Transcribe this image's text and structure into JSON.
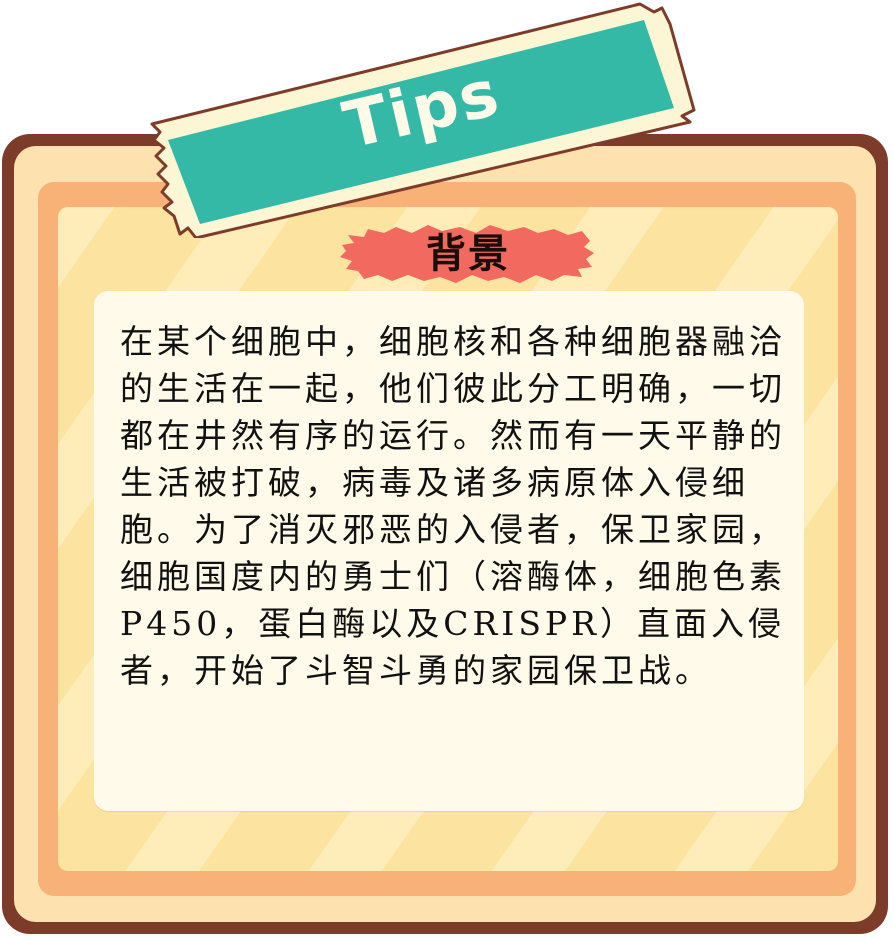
{
  "tips_label": "Tips",
  "section_title": "背景",
  "body_text": "在某个细胞中，细胞核和各种细胞器融洽的生活在一起，他们彼此分工明确，一切都在井然有序的运行。然而有一天平静的生活被打破，病毒及诸多病原体入侵细胞。为了消灭邪恶的入侵者，保卫家园，细胞国度内的勇士们（溶酶体，细胞色素P450，蛋白酶以及CRISPR）直面入侵者，开始了斗智斗勇的家园保卫战。",
  "colors": {
    "frame_outer": "#7d3b2a",
    "frame_peach": "#fde2b0",
    "frame_orange": "#f8b277",
    "frame_yellow": "#fde3a0",
    "card": "#fffae9",
    "ribbon_teal": "#34b9a7",
    "ribbon_cream": "#fdf6d4",
    "banner_red": "#f26a5f"
  }
}
